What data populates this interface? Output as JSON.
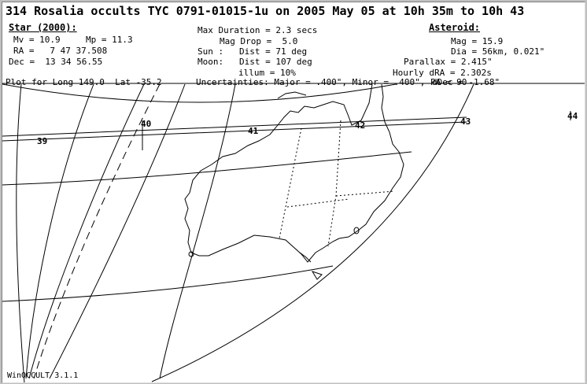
{
  "title": "314 Rosalia occults TYC 0791-01015-1u on 2005 May 05 at 10h 35m to 10h 43",
  "star": {
    "heading": "Star (2000):",
    "mv": "Mv = 10.9",
    "mp": "Mp = 11.3",
    "ra": "RA =   7 47 37.508",
    "dec": "Dec =  13 34 56.55"
  },
  "event": {
    "max_duration": "Max Duration = 2.3 secs",
    "mag_drop": "Mag Drop =  5.0",
    "sun": "Sun :   Dist = 71 deg",
    "moon": "Moon:   Dist = 107 deg",
    "illum": "illum = 10%"
  },
  "asteroid": {
    "heading": "Asteroid:",
    "mag": "Mag = 15.9",
    "dia": "Dia = 56km, 0.021\"",
    "parallax": "Parallax = 2.415\"",
    "hourly_dra": "Hourly dRA = 2.302s",
    "ddec": "dDec = -1.68\""
  },
  "plot_for": "Plot for Long 149.0  Lat -35.2",
  "uncertainties": "Uncertainties: Major = .400\", Minor = .400\", PA = 90",
  "path_labels": [
    "39",
    "40",
    "41",
    "42",
    "43",
    "44"
  ],
  "footer": "WinOCCULT 3.1.1"
}
